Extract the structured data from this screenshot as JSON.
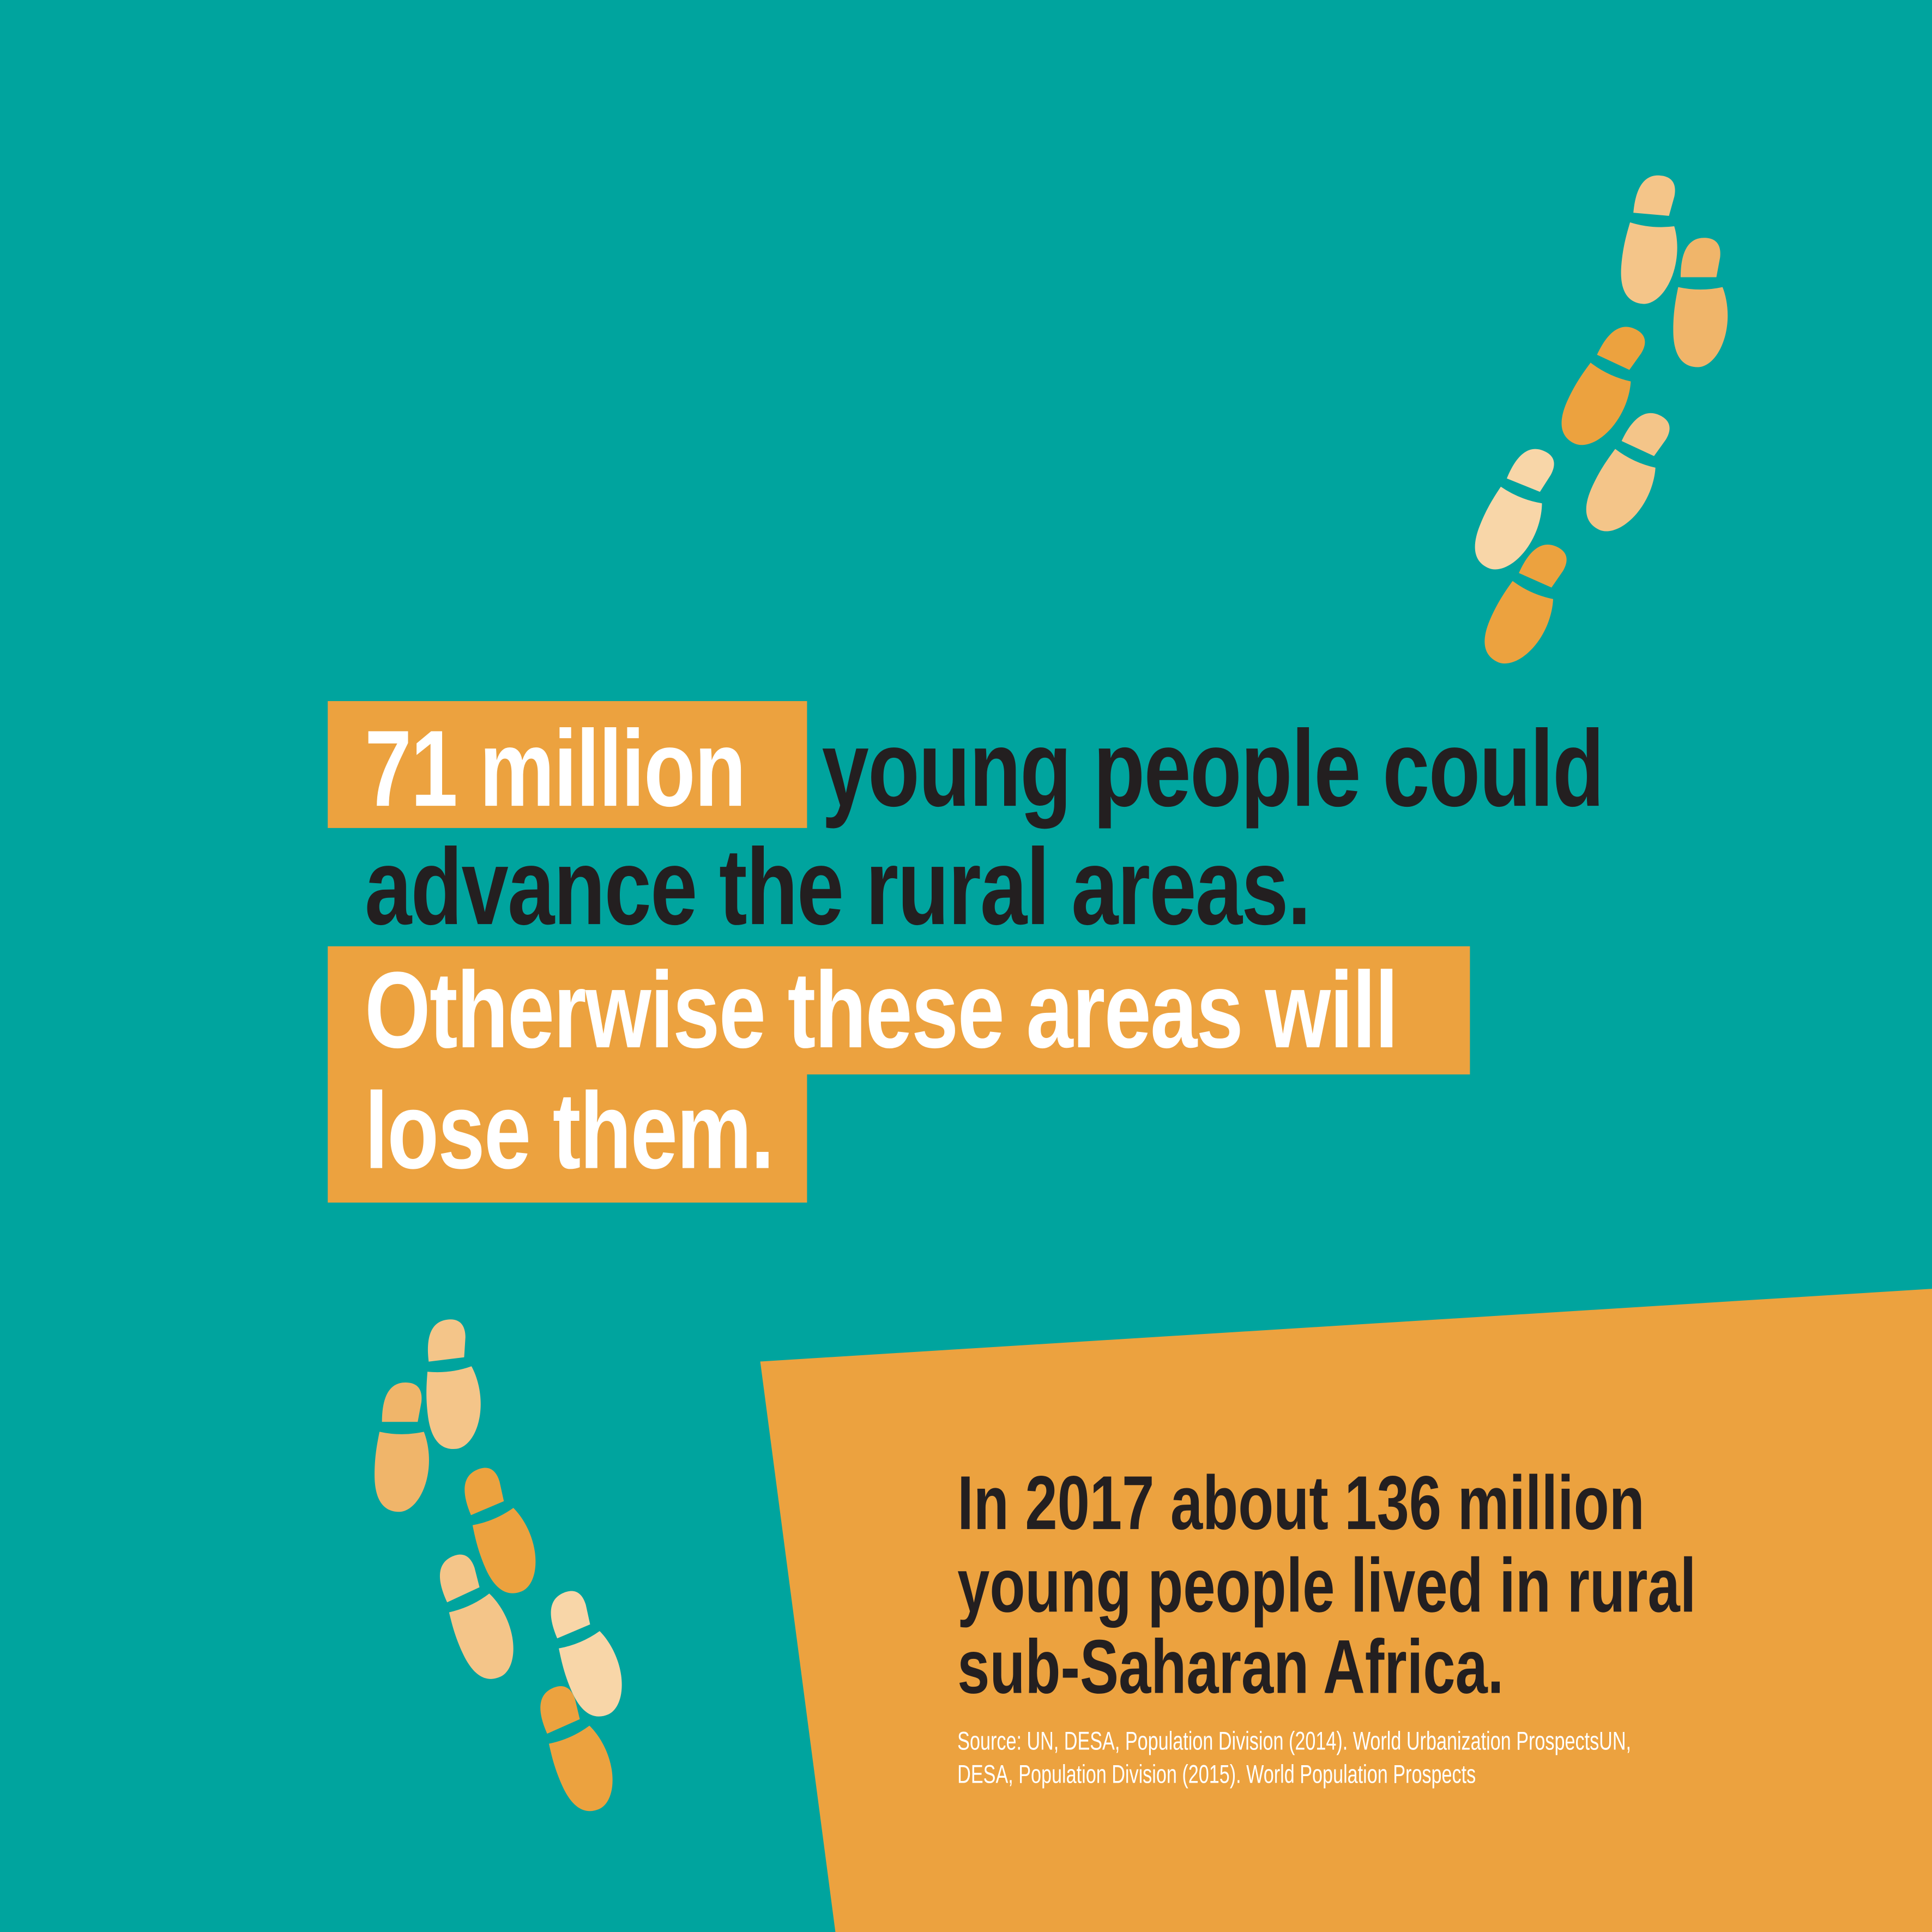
{
  "colors": {
    "background": "#00a49e",
    "accent": "#eca23f",
    "text_dark": "#231f20",
    "text_light": "#ffffff",
    "footprint_light": "#f4c589",
    "footprint_mid": "#f0b56a",
    "footprint_pale": "#f8d6a8",
    "footprint_orange": "#eca23f"
  },
  "headline": {
    "highlight_1": "71 million",
    "line_1_rest": "young people could",
    "line_2": "advance the rural areas.",
    "line_3": "Otherwise these areas will",
    "line_4": "lose them."
  },
  "fact": {
    "line_1": "In 2017 about 136 million",
    "line_2": "young people lived in rural",
    "line_3": "sub-Saharan Africa."
  },
  "source": {
    "line_1": "Source: UN, DESA, Population Division (2014). World Urbanization ProspectsUN,",
    "line_2": "DESA, Population Division (2015). World Population Prospects"
  },
  "icons": {
    "decoration": "footprints-icon"
  }
}
